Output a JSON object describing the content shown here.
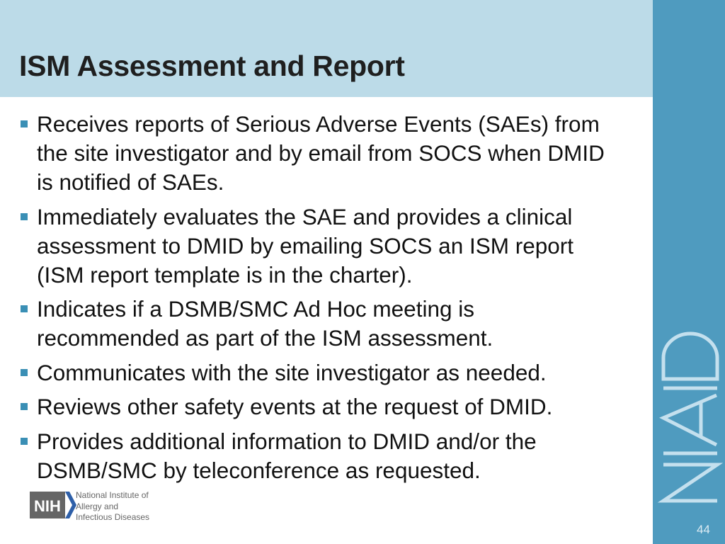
{
  "slide": {
    "title": "ISM Assessment and Report",
    "page_number": "44",
    "bullets": [
      "Receives reports of Serious Adverse Events (SAEs) from the site investigator and by email from SOCS when DMID is notified of SAEs.",
      "Immediately evaluates the SAE and provides a clinical assessment to DMID by emailing SOCS an ISM  report (ISM report template is in the charter).",
      "Indicates if a DSMB/SMC Ad Hoc meeting is recommended as part of the ISM assessment.",
      "Communicates with the site investigator as needed.",
      "Reviews other safety events at the request of DMID.",
      "Provides additional information to DMID and/or the DSMB/SMC by teleconference as requested."
    ]
  },
  "logos": {
    "nih_mark": "NIH",
    "nih_text": [
      "National Institute of",
      "Allergy and",
      "Infectious Diseases"
    ],
    "side_wordmark": "NIAID"
  },
  "colors": {
    "header_bg": "#bcdbe8",
    "side_bar": "#4f9bbf",
    "bullet": "#3a8fb5"
  }
}
